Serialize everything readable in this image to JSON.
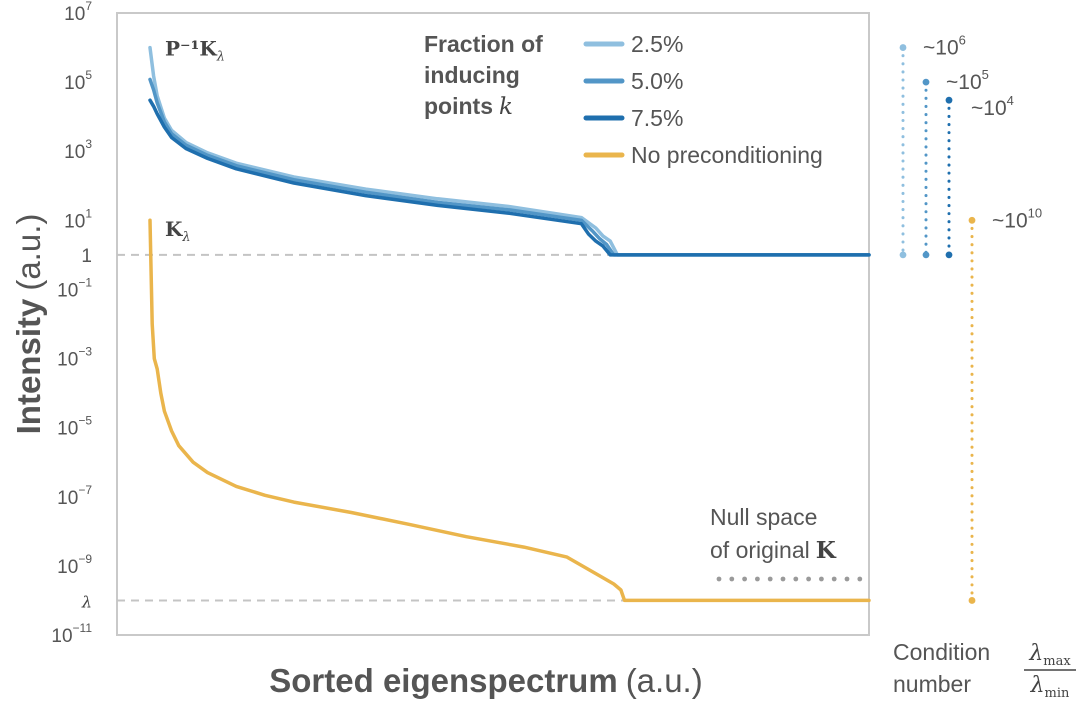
{
  "chart_data": {
    "type": "line",
    "xlabel": "Sorted eigenspectrum",
    "xlabel_unit": "(a.u.)",
    "ylabel": "Intensity",
    "ylabel_unit": "(a.u.)",
    "y_scale": "log",
    "ylim": [
      1e-11,
      10000000.0
    ],
    "grid": false,
    "y_ticks": [
      {
        "value": 10000000.0,
        "base": "10",
        "exp": "7"
      },
      {
        "value": 100000.0,
        "base": "10",
        "exp": "5"
      },
      {
        "value": 1000.0,
        "base": "10",
        "exp": "3"
      },
      {
        "value": 10.0,
        "base": "10",
        "exp": "1"
      },
      {
        "value": 1,
        "base": "1",
        "exp": ""
      },
      {
        "value": 0.1,
        "base": "10",
        "exp": "−1"
      },
      {
        "value": 0.001,
        "base": "10",
        "exp": "−3"
      },
      {
        "value": 1e-05,
        "base": "10",
        "exp": "−5"
      },
      {
        "value": 1e-07,
        "base": "10",
        "exp": "−7"
      },
      {
        "value": 1e-09,
        "base": "10",
        "exp": "−9"
      },
      {
        "value": 1e-10,
        "base": "λ",
        "exp": "",
        "italic": true
      },
      {
        "value": 1e-11,
        "base": "10",
        "exp": "−11"
      }
    ],
    "reference_lines": [
      {
        "y": 1,
        "style": "dashed"
      },
      {
        "y": 1e-10,
        "style": "dashed"
      }
    ],
    "legend": {
      "title_lines": [
        "Fraction of",
        "inducing",
        "points"
      ],
      "title_symbol": "k",
      "placement": "top-right"
    },
    "series": [
      {
        "name": "2.5%",
        "color": "#8fbfdf",
        "x": [
          0,
          0.5,
          1,
          2,
          3,
          5,
          8,
          12,
          20,
          30,
          40,
          50,
          60,
          62,
          63,
          64,
          65,
          67,
          100
        ],
        "y": [
          1000000.0,
          150000.0,
          40000.0,
          9000,
          4000,
          1800,
          900,
          450,
          180,
          80,
          42,
          25,
          12,
          6,
          3.5,
          2.5,
          1,
          1,
          1
        ]
      },
      {
        "name": "5.0%",
        "color": "#5296c7",
        "x": [
          0,
          0.5,
          1,
          2,
          3,
          5,
          8,
          12,
          20,
          30,
          40,
          50,
          60,
          61.5,
          62.5,
          63.5,
          64.5,
          67,
          100
        ],
        "y": [
          120000.0,
          60000.0,
          25000.0,
          7000,
          3200,
          1500,
          760,
          380,
          150,
          65,
          33,
          20,
          10,
          5,
          3,
          2,
          1,
          1,
          1
        ]
      },
      {
        "name": "7.5%",
        "color": "#1f6fae",
        "x": [
          0,
          0.5,
          1,
          2,
          3,
          5,
          8,
          12,
          20,
          30,
          40,
          50,
          60,
          61,
          62,
          63,
          64,
          67,
          100
        ],
        "y": [
          30000.0,
          20000.0,
          12000.0,
          5000,
          2500,
          1200,
          620,
          310,
          120,
          52,
          27,
          16,
          8,
          4,
          2.5,
          1.8,
          1,
          1,
          1
        ]
      },
      {
        "name": "No preconditioning",
        "color": "#eab54c",
        "x": [
          0,
          0.3,
          0.6,
          1,
          1.5,
          2,
          3,
          4,
          6,
          8,
          12,
          16,
          20,
          28,
          36,
          44,
          52,
          58,
          62,
          64.5,
          65.5,
          66,
          66.5,
          100
        ],
        "y": [
          10,
          0.01,
          0.001,
          0.0005,
          0.0001,
          3e-05,
          8e-06,
          3e-06,
          1e-06,
          5e-07,
          2e-07,
          1.1e-07,
          7e-08,
          3.5e-08,
          1.6e-08,
          7e-09,
          3.5e-09,
          1.8e-09,
          6e-10,
          3e-10,
          2e-10,
          1e-10,
          1e-10,
          1e-10
        ]
      }
    ],
    "curve_labels": [
      {
        "text": "P⁻¹K",
        "sub": "λ",
        "series": "2.5%"
      },
      {
        "text": "K",
        "sub": "λ",
        "series": "No preconditioning"
      }
    ],
    "annotations": {
      "null_space": {
        "lines": [
          "Null space",
          "of original"
        ],
        "symbol": "K",
        "x_range": [
          66,
          100
        ],
        "y": 3e-10
      }
    },
    "condition_numbers": {
      "label_lines": [
        "Condition",
        "number"
      ],
      "ratio_numerator": "λ",
      "ratio_numerator_sub": "max",
      "ratio_denominator": "λ",
      "ratio_denominator_sub": "min",
      "items": [
        {
          "series": "2.5%",
          "base": "~10",
          "exp": "6",
          "y_top": 1000000.0,
          "y_bottom": 1
        },
        {
          "series": "5.0%",
          "base": "~10",
          "exp": "5",
          "y_top": 100000.0,
          "y_bottom": 1
        },
        {
          "series": "7.5%",
          "base": "~10",
          "exp": "4",
          "y_top": 30000.0,
          "y_bottom": 1
        },
        {
          "series": "No preconditioning",
          "base": "~10",
          "exp": "10",
          "y_top": 10,
          "y_bottom": 1e-10
        }
      ]
    }
  }
}
